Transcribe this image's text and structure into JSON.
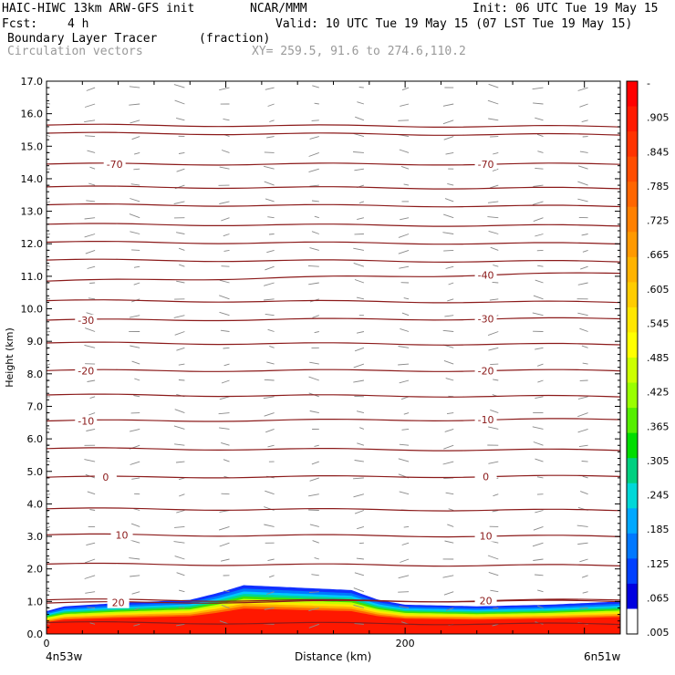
{
  "header": {
    "model": "HAIC-HIWC 13km ARW-GFS init",
    "org": "NCAR/MMM",
    "init": "Init: 06 UTC Tue 19 May 15",
    "fcst_label": "Fcst:",
    "fcst_value": "4 h",
    "valid": "Valid: 10 UTC Tue 19 May 15 (07 LST Tue 19 May 15)",
    "field": "Boundary Layer Tracer",
    "units": "(fraction)",
    "vectors": "Circulation vectors",
    "xy": "XY= 259.5, 91.6 to 274.6,110.2"
  },
  "footer": {
    "left_label": "4n53w",
    "center_label": "Distance (km)",
    "right_label": "6n51w"
  },
  "chart_data": {
    "type": "heatmap",
    "title": "Boundary Layer Tracer",
    "xlabel": "Distance (km)",
    "ylabel": "Height (km)",
    "xlim": [
      0,
      320
    ],
    "ylim": [
      0,
      17
    ],
    "x_ticks": [
      {
        "value": 0,
        "label": "0"
      },
      {
        "value": 200,
        "label": "200"
      }
    ],
    "y_ticks": [
      "0.0",
      "1.0",
      "2.0",
      "3.0",
      "4.0",
      "5.0",
      "6.0",
      "7.0",
      "8.0",
      "9.0",
      "10.0",
      "11.0",
      "12.0",
      "13.0",
      "14.0",
      "15.0",
      "16.0",
      "17.0"
    ],
    "colorbar": {
      "labels": [
        "-",
        ".905",
        ".845",
        ".785",
        ".725",
        ".665",
        ".605",
        ".545",
        ".485",
        ".425",
        ".365",
        ".305",
        ".245",
        ".185",
        ".125",
        ".065",
        ".005"
      ],
      "colors": [
        "#ff0000",
        "#ff1a00",
        "#ff3300",
        "#ff4d00",
        "#ff6600",
        "#ff8000",
        "#ff9900",
        "#ffb300",
        "#ffcc00",
        "#ffe600",
        "#ffff00",
        "#ccff00",
        "#99ff00",
        "#55ee00",
        "#00dd00",
        "#00d080",
        "#00d8d8",
        "#00a8ff",
        "#0078ff",
        "#0040ff",
        "#0000e0",
        "#ffffff"
      ]
    },
    "tracer_cloud": [
      {
        "x": 0,
        "top": 0.7
      },
      {
        "x": 10,
        "top": 0.85
      },
      {
        "x": 40,
        "top": 0.95
      },
      {
        "x": 80,
        "top": 1.05
      },
      {
        "x": 95,
        "top": 1.25
      },
      {
        "x": 110,
        "top": 1.5
      },
      {
        "x": 130,
        "top": 1.45
      },
      {
        "x": 150,
        "top": 1.4
      },
      {
        "x": 170,
        "top": 1.35
      },
      {
        "x": 185,
        "top": 1.05
      },
      {
        "x": 200,
        "top": 0.9
      },
      {
        "x": 240,
        "top": 0.85
      },
      {
        "x": 280,
        "top": 0.9
      },
      {
        "x": 320,
        "top": 1.0
      }
    ],
    "temperature_contours": [
      {
        "label": "20",
        "y_left": 0.95,
        "y_right": 1.05,
        "label_x": [
          40,
          245
        ]
      },
      {
        "label": "10",
        "y_left": 3.05,
        "y_right": 3.0,
        "label_x": [
          42,
          245
        ]
      },
      {
        "label": "0",
        "y_left": 4.82,
        "y_right": 4.85,
        "label_x": [
          33,
          245
        ]
      },
      {
        "label": "-10",
        "y_left": 6.55,
        "y_right": 6.6,
        "label_x": [
          22,
          245
        ]
      },
      {
        "label": "-20",
        "y_left": 8.1,
        "y_right": 8.1,
        "label_x": [
          22,
          245
        ]
      },
      {
        "label": "-30",
        "y_left": 9.65,
        "y_right": 9.7,
        "label_x": [
          22,
          245
        ]
      },
      {
        "label": "-40",
        "y_left": 10.85,
        "y_right": 11.1,
        "label_x": [
          245
        ]
      },
      {
        "label": "-70",
        "y_left": 14.45,
        "y_right": 14.45,
        "label_x": [
          38,
          245
        ]
      }
    ],
    "unlabeled_contour_heights": [
      0.35,
      1.05,
      2.15,
      3.85,
      5.7,
      7.35,
      8.95,
      10.25,
      11.5,
      12.05,
      12.6,
      13.2,
      13.75,
      15.4,
      15.65
    ],
    "grid": false,
    "legend": "right colorbar"
  }
}
